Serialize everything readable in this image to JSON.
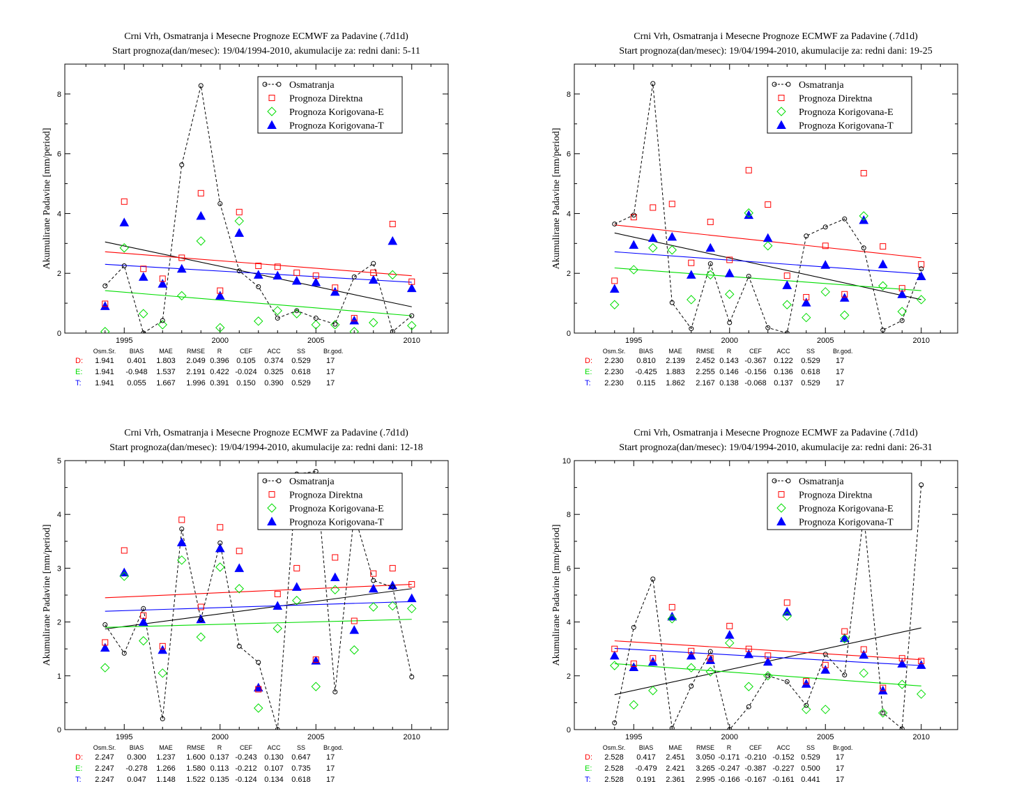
{
  "legend_labels": [
    "Osmatranja",
    "Prognoza Direktna",
    "Prognoza Korigovana-E",
    "Prognoza Korigovana-T"
  ],
  "stats_header": [
    "Osm.Sr.",
    "BIAS",
    "MAE",
    "RMSE",
    "R",
    "CEF",
    "ACC",
    "SS",
    "Br.god."
  ],
  "colors": {
    "obs": "#000000",
    "direct": "#ff0000",
    "corr_e": "#00dd00",
    "corr_t": "#0000ff"
  },
  "chart_data": [
    {
      "type": "scatter",
      "title": "Crni Vrh, Osmatranja i Mesecne Prognoze ECMWF za Padavine (.7d1d)",
      "subtitle": "Start prognoza(dan/mesec): 19/04/1994-2010, akumulacije za: redni dani: 5-11",
      "ylabel": "Akumulirane Padavine [mm/period]",
      "xlim": [
        1991.9,
        2011.9
      ],
      "ylim": [
        0,
        9
      ],
      "xticks": [
        1995,
        2000,
        2005,
        2010
      ],
      "yticks": [
        0,
        2,
        4,
        6,
        8
      ],
      "x": [
        1994,
        1995,
        1996,
        1997,
        1998,
        1999,
        2000,
        2001,
        2002,
        2003,
        2004,
        2005,
        2006,
        2007,
        2008,
        2009,
        2010
      ],
      "series": [
        {
          "name": "Osmatranja",
          "values": [
            1.58,
            2.25,
            0.0,
            0.42,
            5.63,
            8.28,
            4.33,
            2.08,
            1.55,
            0.5,
            0.75,
            0.5,
            0.3,
            1.88,
            2.33,
            0.05,
            0.58
          ]
        },
        {
          "name": "Prognoza Direktna",
          "values": [
            0.98,
            4.4,
            2.15,
            1.82,
            2.52,
            4.68,
            1.42,
            4.05,
            2.25,
            2.22,
            2.02,
            1.92,
            1.52,
            0.5,
            2.02,
            3.65,
            1.72
          ]
        },
        {
          "name": "Prognoza Korigovana-E",
          "values": [
            0.05,
            2.85,
            0.65,
            0.28,
            1.25,
            3.08,
            0.18,
            3.75,
            0.4,
            0.75,
            0.65,
            0.28,
            0.28,
            0.05,
            0.35,
            1.95,
            0.25
          ]
        },
        {
          "name": "Prognoza Korigovana-T",
          "values": [
            0.9,
            3.7,
            1.88,
            1.65,
            2.15,
            3.92,
            1.25,
            3.35,
            1.95,
            1.92,
            1.75,
            1.7,
            1.38,
            0.42,
            1.78,
            3.08,
            1.5
          ]
        }
      ],
      "trends": [
        [
          3.05,
          0.88
        ],
        [
          2.72,
          1.92
        ],
        [
          1.42,
          0.58
        ],
        [
          2.3,
          1.7
        ]
      ],
      "stats": [
        {
          "label": "D:",
          "values": [
            "1.941",
            "0.401",
            "1.803",
            "2.049",
            "0.396",
            "0.105",
            "0.374",
            "0.529",
            "17"
          ]
        },
        {
          "label": "E:",
          "values": [
            "1.941",
            "-0.948",
            "1.537",
            "2.191",
            "0.422",
            "-0.024",
            "0.325",
            "0.618",
            "17"
          ]
        },
        {
          "label": "T:",
          "values": [
            "1.941",
            "0.055",
            "1.667",
            "1.996",
            "0.391",
            "0.150",
            "0.390",
            "0.529",
            "17"
          ]
        }
      ]
    },
    {
      "type": "scatter",
      "title": "Crni Vrh, Osmatranja i Mesecne Prognoze ECMWF za Padavine (.7d1d)",
      "subtitle": "Start prognoza(dan/mesec): 19/04/1994-2010, akumulacije za: redni dani: 19-25",
      "ylabel": "Akumulirane Padavine [mm/period]",
      "xlim": [
        1991.9,
        2011.9
      ],
      "ylim": [
        0,
        9
      ],
      "xticks": [
        1995,
        2000,
        2005,
        2010
      ],
      "yticks": [
        0,
        2,
        4,
        6,
        8
      ],
      "x": [
        1994,
        1995,
        1996,
        1997,
        1998,
        1999,
        2000,
        2001,
        2002,
        2003,
        2004,
        2005,
        2006,
        2007,
        2008,
        2009,
        2010
      ],
      "series": [
        {
          "name": "Osmatranja",
          "values": [
            3.65,
            3.95,
            8.35,
            1.02,
            0.15,
            2.32,
            0.35,
            1.9,
            0.18,
            0.0,
            3.25,
            3.55,
            3.82,
            2.85,
            0.1,
            0.42,
            2.15
          ]
        },
        {
          "name": "Prognoza Direktna",
          "values": [
            1.75,
            3.88,
            4.2,
            4.32,
            2.35,
            3.72,
            2.45,
            5.45,
            4.3,
            1.92,
            1.2,
            2.92,
            1.3,
            5.35,
            2.9,
            1.5,
            2.3
          ]
        },
        {
          "name": "Prognoza Korigovana-E",
          "values": [
            0.95,
            2.12,
            2.85,
            2.78,
            1.12,
            1.95,
            1.3,
            4.02,
            2.92,
            0.95,
            0.52,
            1.38,
            0.6,
            3.92,
            1.58,
            0.72,
            1.12
          ]
        },
        {
          "name": "Prognoza Korigovana-T",
          "values": [
            1.48,
            2.95,
            3.18,
            3.22,
            1.95,
            2.85,
            2.0,
            3.95,
            3.18,
            1.6,
            1.02,
            2.28,
            1.18,
            3.78,
            2.3,
            1.3,
            1.9
          ]
        }
      ],
      "trends": [
        [
          3.35,
          1.12
        ],
        [
          3.62,
          2.52
        ],
        [
          2.18,
          1.42
        ],
        [
          2.72,
          1.98
        ]
      ],
      "stats": [
        {
          "label": "D:",
          "values": [
            "2.230",
            "0.810",
            "2.139",
            "2.452",
            "0.143",
            "-0.367",
            "0.122",
            "0.529",
            "17"
          ]
        },
        {
          "label": "E:",
          "values": [
            "2.230",
            "-0.425",
            "1.883",
            "2.255",
            "0.146",
            "-0.156",
            "0.136",
            "0.618",
            "17"
          ]
        },
        {
          "label": "T:",
          "values": [
            "2.230",
            "0.115",
            "1.862",
            "2.167",
            "0.138",
            "-0.068",
            "0.137",
            "0.529",
            "17"
          ]
        }
      ]
    },
    {
      "type": "scatter",
      "title": "Crni Vrh, Osmatranja i Mesecne Prognoze ECMWF za Padavine (.7d1d)",
      "subtitle": "Start prognoza(dan/mesec): 19/04/1994-2010, akumulacije za: redni dani: 12-18",
      "ylabel": "Akumulirane Padavine [mm/period]",
      "xlim": [
        1991.9,
        2011.9
      ],
      "ylim": [
        0,
        5
      ],
      "xticks": [
        1995,
        2000,
        2005,
        2010
      ],
      "yticks": [
        0,
        1,
        2,
        3,
        4,
        5
      ],
      "x": [
        1994,
        1995,
        1996,
        1997,
        1998,
        1999,
        2000,
        2001,
        2002,
        2003,
        2004,
        2005,
        2006,
        2007,
        2008,
        2009,
        2010
      ],
      "series": [
        {
          "name": "Osmatranja",
          "values": [
            1.95,
            1.42,
            2.25,
            0.2,
            3.73,
            2.05,
            3.47,
            1.55,
            1.25,
            0.0,
            4.75,
            4.8,
            0.7,
            4.0,
            2.77,
            2.65,
            0.98
          ]
        },
        {
          "name": "Prognoza Direktna",
          "values": [
            1.62,
            3.33,
            2.12,
            1.55,
            3.9,
            2.28,
            3.76,
            3.32,
            0.75,
            2.52,
            3.0,
            1.3,
            3.2,
            2.02,
            2.9,
            3.0,
            2.7
          ]
        },
        {
          "name": "Prognoza Korigovana-E",
          "values": [
            1.15,
            2.85,
            1.65,
            1.05,
            3.15,
            1.72,
            3.02,
            2.62,
            0.4,
            1.88,
            2.4,
            0.8,
            2.6,
            1.48,
            2.28,
            2.3,
            2.25
          ]
        },
        {
          "name": "Prognoza Korigovana-T",
          "values": [
            1.52,
            2.92,
            2.0,
            1.48,
            3.48,
            2.05,
            3.37,
            3.0,
            0.78,
            2.3,
            2.65,
            1.28,
            2.83,
            1.85,
            2.62,
            2.68,
            2.44
          ]
        }
      ],
      "trends": [
        [
          1.87,
          2.62
        ],
        [
          2.45,
          2.7
        ],
        [
          1.9,
          2.05
        ],
        [
          2.2,
          2.38
        ]
      ],
      "stats": [
        {
          "label": "D:",
          "values": [
            "2.247",
            "0.300",
            "1.237",
            "1.600",
            "0.137",
            "-0.243",
            "0.130",
            "0.647",
            "17"
          ]
        },
        {
          "label": "E:",
          "values": [
            "2.247",
            "-0.278",
            "1.266",
            "1.580",
            "0.113",
            "-0.212",
            "0.107",
            "0.735",
            "17"
          ]
        },
        {
          "label": "T:",
          "values": [
            "2.247",
            "0.047",
            "1.148",
            "1.522",
            "0.135",
            "-0.124",
            "0.134",
            "0.618",
            "17"
          ]
        }
      ]
    },
    {
      "type": "scatter",
      "title": "Crni Vrh, Osmatranja i Mesecne Prognoze ECMWF za Padavine (.7d1d)",
      "subtitle": "Start prognoza(dan/mesec): 19/04/1994-2010, akumulacije za: redni dani: 26-31",
      "ylabel": "Akumulirane Padavine [mm/period]",
      "xlim": [
        1991.9,
        2011.9
      ],
      "ylim": [
        0,
        10
      ],
      "xticks": [
        1995,
        2000,
        2005,
        2010
      ],
      "yticks": [
        0,
        2,
        4,
        6,
        8,
        10
      ],
      "x": [
        1994,
        1995,
        1996,
        1997,
        1998,
        1999,
        2000,
        2001,
        2002,
        2003,
        2004,
        2005,
        2006,
        2007,
        2008,
        2009,
        2010
      ],
      "series": [
        {
          "name": "Osmatranja",
          "values": [
            0.25,
            3.8,
            5.6,
            0.05,
            1.62,
            2.9,
            0.0,
            0.85,
            2.0,
            1.78,
            0.9,
            2.8,
            2.03,
            8.0,
            0.62,
            0.03,
            9.1
          ]
        },
        {
          "name": "Prognoza Direktna",
          "values": [
            3.0,
            2.45,
            2.65,
            4.55,
            2.92,
            2.65,
            3.85,
            3.0,
            2.75,
            4.72,
            1.8,
            2.4,
            3.65,
            2.98,
            1.55,
            2.65,
            2.55
          ]
        },
        {
          "name": "Prognoza Korigovana-E",
          "values": [
            2.38,
            0.92,
            1.45,
            4.12,
            2.3,
            2.15,
            3.22,
            1.6,
            2.0,
            4.22,
            0.75,
            0.75,
            3.38,
            2.1,
            0.62,
            1.68,
            1.32
          ]
        },
        {
          "name": "Prognoza Korigovana-T",
          "values": [
            2.75,
            2.32,
            2.52,
            4.2,
            2.75,
            2.58,
            3.52,
            2.8,
            2.52,
            4.38,
            1.7,
            2.22,
            3.4,
            2.78,
            1.45,
            2.45,
            2.4
          ]
        }
      ],
      "trends": [
        [
          1.3,
          3.78
        ],
        [
          3.3,
          2.6
        ],
        [
          2.45,
          1.62
        ],
        [
          3.02,
          2.38
        ]
      ],
      "stats": [
        {
          "label": "D:",
          "values": [
            "2.528",
            "0.417",
            "2.451",
            "3.050",
            "-0.171",
            "-0.210",
            "-0.152",
            "0.529",
            "17"
          ]
        },
        {
          "label": "E:",
          "values": [
            "2.528",
            "-0.479",
            "2.421",
            "3.265",
            "-0.247",
            "-0.387",
            "-0.227",
            "0.500",
            "17"
          ]
        },
        {
          "label": "T:",
          "values": [
            "2.528",
            "0.191",
            "2.361",
            "2.995",
            "-0.166",
            "-0.167",
            "-0.161",
            "0.441",
            "17"
          ]
        }
      ]
    }
  ]
}
